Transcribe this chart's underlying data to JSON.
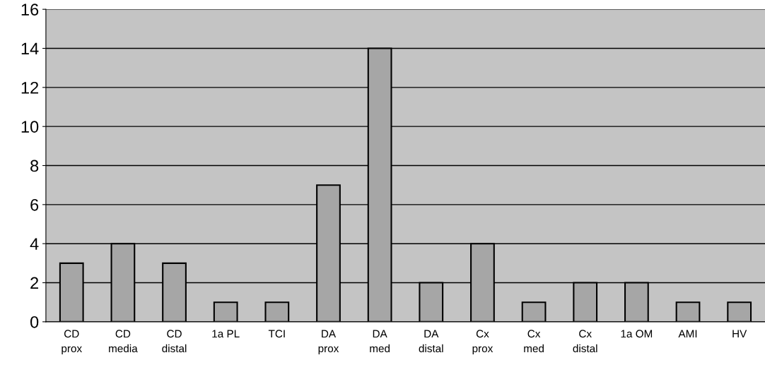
{
  "chart_data": {
    "type": "bar",
    "categories": [
      "CD\nprox",
      "CD\nmedia",
      "CD\ndistal",
      "1a PL",
      "TCI",
      "DA\nprox",
      "DA\nmed",
      "DA\ndistal",
      "Cx\nprox",
      "Cx\nmed",
      "Cx\ndistal",
      "1a OM",
      "AMI",
      "HV"
    ],
    "values": [
      3,
      4,
      3,
      1,
      1,
      7,
      14,
      2,
      4,
      1,
      2,
      2,
      1,
      1
    ],
    "color": "#a6a6a6",
    "ylim": [
      0,
      16
    ],
    "yticks": [
      0,
      2,
      4,
      6,
      8,
      10,
      12,
      14,
      16
    ],
    "grid": "y"
  }
}
